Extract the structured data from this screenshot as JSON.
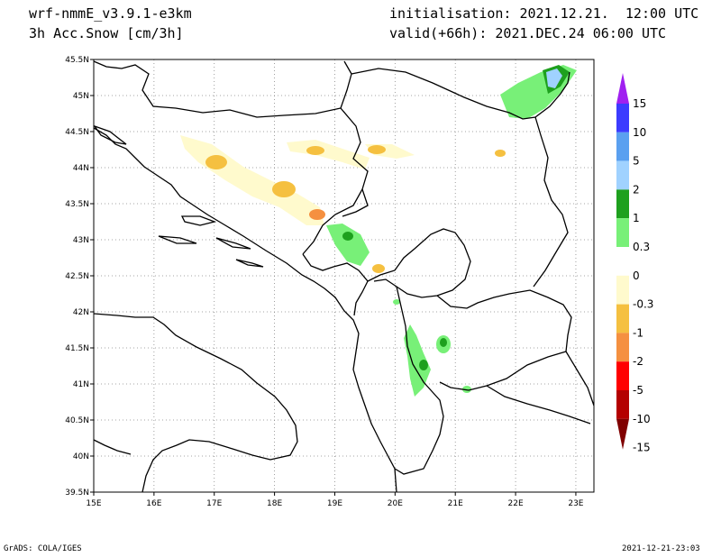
{
  "header": {
    "model": "wrf-nmmE_v3.9.1-e3km",
    "field": "3h Acc.Snow [cm/3h]",
    "init": "initialisation: 2021.12.21.  12:00 UTC",
    "valid": "valid(+66h): 2021.DEC.24 06:00 UTC"
  },
  "footer": {
    "left": "GrADS: COLA/IGES",
    "right": "2021-12-21-23:03"
  },
  "map": {
    "lon_range": [
      15,
      23.3
    ],
    "lat_range": [
      39.5,
      45.5
    ],
    "lon_ticks": [
      "15E",
      "16E",
      "17E",
      "18E",
      "19E",
      "20E",
      "21E",
      "22E",
      "23E"
    ],
    "lat_ticks": [
      "45.5N",
      "45N",
      "44.5N",
      "44N",
      "43.5N",
      "43N",
      "42.5N",
      "42N",
      "41.5N",
      "41N",
      "40.5N",
      "40N",
      "39.5N"
    ],
    "grid": "dotted"
  },
  "colorbar": {
    "labels": [
      "15",
      "10",
      "5",
      "2",
      "1",
      "0.3",
      "0",
      "-0.3",
      "-1",
      "-2",
      "-5",
      "-10",
      "-15"
    ],
    "colors": [
      "#a020f0",
      "#3c3cff",
      "#5aa0f0",
      "#a0d2ff",
      "#1ea01e",
      "#78f078",
      "#ffffff",
      "#fffacd",
      "#f5c040",
      "#f59040",
      "#ff0000",
      "#b40000",
      "#800000"
    ]
  }
}
